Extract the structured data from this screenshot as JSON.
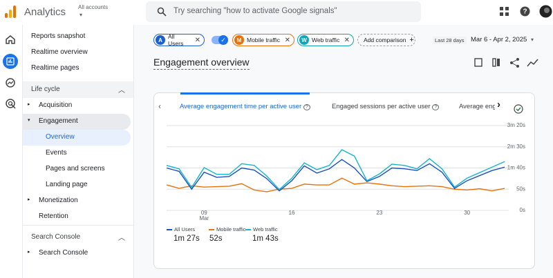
{
  "header": {
    "product": "Analytics",
    "account": "All accounts",
    "search_placeholder": "Try searching \"how to activate Google signals\""
  },
  "nav": {
    "items": [
      "Reports snapshot",
      "Realtime overview",
      "Realtime pages"
    ],
    "sections": [
      {
        "title": "Life cycle",
        "items": [
          {
            "label": "Acquisition"
          },
          {
            "label": "Engagement",
            "children": [
              "Overview",
              "Events",
              "Pages and screens",
              "Landing page"
            ]
          },
          {
            "label": "Monetization"
          },
          {
            "label": "Retention"
          }
        ]
      },
      {
        "title": "Search Console",
        "items": [
          {
            "label": "Search Console"
          }
        ]
      }
    ]
  },
  "comparisons": [
    {
      "badge": "A",
      "label": "All Users",
      "color": "#1a5fd1"
    },
    {
      "badge": "M",
      "label": "Mobile traffic",
      "color": "#e8710a"
    },
    {
      "badge": "W",
      "label": "Web traffic",
      "color": "#12a4b8"
    }
  ],
  "add_comparison": "Add comparison",
  "date_range": {
    "preset": "Last 28 days",
    "range": "Mar 6 - Apr 2, 2025"
  },
  "title": "Engagement overview",
  "tabs": [
    "Average engagement time per active user",
    "Engaged sessions per active user",
    "Average eng"
  ],
  "chart": {
    "type": "line",
    "categories": [
      null,
      null,
      null,
      "09",
      null,
      null,
      null,
      null,
      null,
      null,
      "16",
      null,
      null,
      null,
      null,
      null,
      null,
      "23",
      null,
      null,
      null,
      null,
      null,
      null,
      "30",
      null,
      null,
      null
    ],
    "x_month_label": "Mar",
    "ylim": [
      0,
      200
    ],
    "yticks": [
      {
        "value": 0,
        "label": "0s"
      },
      {
        "value": 50,
        "label": "50s"
      },
      {
        "value": 100,
        "label": "1m 40s"
      },
      {
        "value": 150,
        "label": "2m 30s"
      },
      {
        "value": 200,
        "label": "3m 20s"
      }
    ],
    "grid": true,
    "series": [
      {
        "name": "All Users",
        "color": "#1a4fc4",
        "summary": "1m 27s",
        "values": [
          100,
          92,
          50,
          90,
          78,
          80,
          100,
          95,
          75,
          46,
          70,
          105,
          88,
          98,
          120,
          100,
          68,
          80,
          100,
          98,
          94,
          110,
          90,
          52,
          70,
          82,
          94,
          102
        ]
      },
      {
        "name": "Mobile traffic",
        "color": "#e8710a",
        "summary": "52s",
        "values": [
          60,
          52,
          58,
          55,
          56,
          57,
          63,
          48,
          44,
          50,
          52,
          62,
          60,
          60,
          76,
          62,
          65,
          62,
          58,
          56,
          57,
          58,
          56,
          50,
          48,
          51,
          46,
          52
        ]
      },
      {
        "name": "Web traffic",
        "color": "#12b5cb",
        "summary": "1m 43s",
        "values": [
          106,
          98,
          54,
          101,
          85,
          85,
          110,
          106,
          81,
          49,
          76,
          112,
          96,
          106,
          143,
          128,
          70,
          86,
          109,
          106,
          98,
          122,
          98,
          55,
          76,
          89,
          102,
          115
        ]
      }
    ]
  }
}
